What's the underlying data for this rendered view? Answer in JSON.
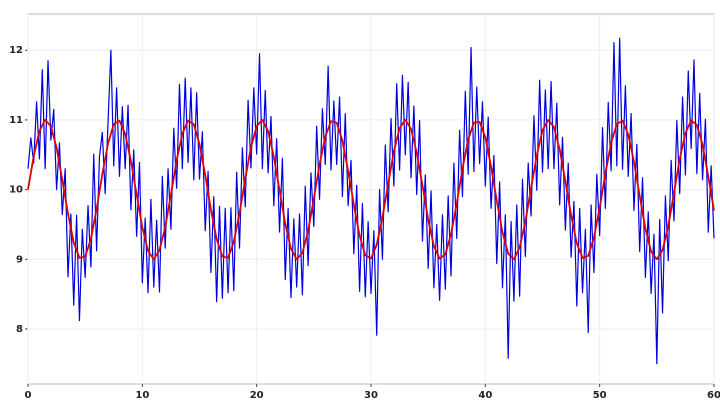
{
  "chart_data": {
    "type": "line",
    "xlim": [
      0,
      60
    ],
    "ylim": [
      7.21,
      12.52
    ],
    "xticks": [
      0,
      10,
      20,
      30,
      40,
      50,
      60
    ],
    "yticks": [
      8,
      9,
      10,
      11,
      12
    ],
    "grid": true,
    "series": [
      {
        "color": "#0000dd",
        "x": [
          0,
          0.25,
          0.5,
          0.75,
          1,
          1.25,
          1.5,
          1.75,
          2,
          2.25,
          2.5,
          2.75,
          3,
          3.25,
          3.5,
          3.75,
          4,
          4.25,
          4.5,
          4.75,
          5,
          5.25,
          5.5,
          5.75,
          6,
          6.25,
          6.5,
          6.75,
          7,
          7.25,
          7.5,
          7.75,
          8,
          8.25,
          8.5,
          8.75,
          9,
          9.25,
          9.5,
          9.75,
          10,
          10.25,
          10.5,
          10.75,
          11,
          11.25,
          11.5,
          11.75,
          12,
          12.25,
          12.5,
          12.75,
          13,
          13.25,
          13.5,
          13.75,
          14,
          14.25,
          14.5,
          14.75,
          15,
          15.25,
          15.5,
          15.75,
          16,
          16.25,
          16.5,
          16.75,
          17,
          17.25,
          17.5,
          17.75,
          18,
          18.25,
          18.5,
          18.75,
          19,
          19.25,
          19.5,
          19.75,
          20,
          20.25,
          20.5,
          20.75,
          21,
          21.25,
          21.5,
          21.75,
          22,
          22.25,
          22.5,
          22.75,
          23,
          23.25,
          23.5,
          23.75,
          24,
          24.25,
          24.5,
          24.75,
          25,
          25.25,
          25.5,
          25.75,
          26,
          26.25,
          26.5,
          26.75,
          27,
          27.25,
          27.5,
          27.75,
          28,
          28.25,
          28.5,
          28.75,
          29,
          29.25,
          29.5,
          29.75,
          30,
          30.25,
          30.5,
          30.75,
          31,
          31.25,
          31.5,
          31.75,
          32,
          32.25,
          32.5,
          32.75,
          33,
          33.25,
          33.5,
          33.75,
          34,
          34.25,
          34.5,
          34.75,
          35,
          35.25,
          35.5,
          35.75,
          36,
          36.25,
          36.5,
          36.75,
          37,
          37.25,
          37.5,
          37.75,
          38,
          38.25,
          38.5,
          38.75,
          39,
          39.25,
          39.5,
          39.75,
          40,
          40.25,
          40.5,
          40.75,
          41,
          41.25,
          41.5,
          41.75,
          42,
          42.25,
          42.5,
          42.75,
          43,
          43.25,
          43.5,
          43.75,
          44,
          44.25,
          44.5,
          44.75,
          45,
          45.25,
          45.5,
          45.75,
          46,
          46.25,
          46.5,
          46.75,
          47,
          47.25,
          47.5,
          47.75,
          48,
          48.25,
          48.5,
          48.75,
          49,
          49.25,
          49.5,
          49.75,
          50,
          50.25,
          50.5,
          50.75,
          51,
          51.25,
          51.5,
          51.75,
          52,
          52.25,
          52.5,
          52.75,
          53,
          53.25,
          53.5,
          53.75,
          54,
          54.25,
          54.5,
          54.75,
          55,
          55.25,
          55.5,
          55.75,
          56,
          56.25,
          56.5,
          56.75,
          57,
          57.25,
          57.5,
          57.75,
          58,
          58.25,
          58.5,
          58.75,
          59,
          59.25,
          59.5,
          59.75,
          60
        ],
        "values": [
          10.3,
          10.74,
          10.38,
          11.26,
          10.44,
          11.72,
          10.3,
          11.85,
          10.71,
          11.15,
          10.0,
          10.67,
          9.64,
          10.3,
          8.75,
          9.65,
          8.34,
          9.63,
          8.12,
          9.43,
          8.74,
          9.77,
          8.89,
          10.51,
          9.12,
          10.47,
          10.82,
          9.94,
          10.96,
          12.0,
          10.34,
          11.46,
          10.19,
          11.19,
          10.3,
          11.21,
          9.71,
          10.57,
          9.33,
          10.39,
          8.66,
          9.59,
          8.52,
          9.86,
          8.6,
          9.56,
          8.53,
          10.19,
          9.16,
          10.3,
          9.43,
          10.88,
          10.02,
          11.51,
          10.3,
          11.6,
          10.39,
          11.46,
          10.14,
          11.39,
          10.15,
          10.83,
          9.41,
          10.26,
          8.81,
          9.9,
          8.39,
          9.76,
          8.44,
          9.73,
          8.52,
          9.74,
          8.55,
          10.25,
          9.16,
          10.6,
          9.75,
          11.28,
          10.31,
          11.46,
          10.51,
          11.95,
          10.3,
          11.42,
          10.24,
          11.05,
          9.77,
          10.73,
          9.39,
          10.45,
          8.71,
          9.73,
          8.45,
          9.58,
          8.6,
          9.65,
          8.49,
          10.05,
          8.91,
          10.24,
          9.47,
          10.91,
          9.86,
          11.16,
          10.36,
          11.77,
          10.28,
          11.27,
          10.36,
          11.33,
          9.9,
          11.09,
          9.77,
          10.42,
          9.08,
          10.06,
          8.54,
          9.8,
          8.46,
          9.54,
          8.51,
          9.41,
          7.91,
          10.0,
          9.0,
          10.64,
          9.68,
          11.02,
          10.05,
          11.52,
          10.28,
          11.64,
          10.5,
          11.54,
          10.17,
          11.2,
          9.93,
          10.99,
          9.26,
          10.21,
          8.87,
          9.98,
          8.59,
          9.5,
          8.41,
          9.64,
          8.57,
          9.91,
          8.76,
          10.38,
          9.3,
          10.85,
          9.9,
          11.41,
          10.22,
          12.04,
          10.26,
          11.47,
          10.37,
          11.26,
          10.05,
          11.04,
          9.73,
          10.49,
          8.94,
          10.11,
          8.59,
          9.64,
          7.58,
          9.54,
          8.4,
          9.78,
          8.47,
          10.15,
          9.04,
          10.38,
          9.62,
          11.06,
          9.99,
          11.57,
          10.25,
          11.43,
          10.3,
          11.55,
          10.3,
          11.24,
          9.78,
          10.75,
          9.42,
          10.38,
          9.03,
          9.83,
          8.33,
          9.73,
          8.52,
          9.43,
          7.95,
          9.78,
          8.81,
          10.22,
          9.34,
          10.89,
          9.73,
          11.25,
          10.27,
          12.11,
          10.34,
          12.17,
          10.29,
          11.49,
          10.19,
          11.09,
          9.7,
          10.65,
          9.11,
          10.17,
          8.74,
          9.68,
          8.51,
          9.36,
          7.5,
          9.57,
          8.23,
          9.91,
          8.98,
          10.42,
          9.55,
          10.99,
          9.94,
          11.33,
          10.21,
          11.7,
          10.59,
          11.86,
          10.23,
          11.38,
          10.14,
          11.01,
          9.39,
          10.34,
          9.3
        ]
      },
      {
        "color": "#dd0000",
        "x": [
          0,
          0.5,
          1,
          1.5,
          2,
          2.5,
          3,
          3.5,
          4,
          4.5,
          5,
          5.5,
          6,
          6.5,
          7,
          7.5,
          8,
          8.5,
          9,
          9.5,
          10,
          10.5,
          11,
          11.5,
          12,
          12.5,
          13,
          13.5,
          14,
          14.5,
          15,
          15.5,
          16,
          16.5,
          17,
          17.5,
          18,
          18.5,
          19,
          19.5,
          20,
          20.5,
          21,
          21.5,
          22,
          22.5,
          23,
          23.5,
          24,
          24.5,
          25,
          25.5,
          26,
          26.5,
          27,
          27.5,
          28,
          28.5,
          29,
          29.5,
          30,
          30.5,
          31,
          31.5,
          32,
          32.5,
          33,
          33.5,
          34,
          34.5,
          35,
          35.5,
          36,
          36.5,
          37,
          37.5,
          38,
          38.5,
          39,
          39.5,
          40,
          40.5,
          41,
          41.5,
          42,
          42.5,
          43,
          43.5,
          44,
          44.5,
          45,
          45.5,
          46,
          46.5,
          47,
          47.5,
          48,
          48.5,
          49,
          49.5,
          50,
          50.5,
          51,
          51.5,
          52,
          52.5,
          53,
          53.5,
          54,
          54.5,
          55,
          55.5,
          56,
          56.5,
          57,
          57.5,
          58,
          58.5,
          59,
          59.5,
          60
        ],
        "values": [
          10.0,
          10.48,
          10.84,
          11.0,
          10.91,
          10.6,
          10.14,
          9.65,
          9.24,
          9.02,
          9.04,
          9.29,
          9.72,
          10.22,
          10.66,
          10.94,
          10.99,
          10.8,
          10.41,
          9.93,
          9.46,
          9.12,
          9.0,
          9.13,
          9.46,
          9.93,
          10.42,
          10.8,
          10.99,
          10.94,
          10.65,
          10.21,
          9.71,
          9.29,
          9.04,
          9.02,
          9.25,
          9.66,
          10.15,
          10.61,
          10.91,
          11.0,
          10.84,
          10.47,
          9.99,
          9.51,
          9.15,
          9.0,
          9.09,
          9.41,
          9.87,
          10.36,
          10.76,
          10.98,
          10.96,
          10.7,
          10.27,
          9.78,
          9.34,
          9.06,
          9.01,
          9.21,
          9.6,
          10.08,
          10.55,
          10.88,
          11.0,
          10.87,
          10.53,
          10.06,
          9.57,
          9.19,
          9.01,
          9.07,
          9.36,
          9.8,
          10.3,
          10.72,
          10.96,
          10.97,
          10.75,
          10.33,
          9.84,
          9.39,
          9.08,
          9.0,
          9.17,
          9.54,
          10.02,
          10.49,
          10.85,
          11.0,
          10.9,
          10.58,
          10.12,
          9.63,
          9.23,
          9.02,
          9.05,
          9.31,
          9.74,
          10.23,
          10.67,
          10.94,
          10.99,
          10.79,
          10.4,
          9.91,
          9.44,
          9.11,
          9.0,
          9.13,
          9.48,
          9.95,
          10.44,
          10.81,
          10.99,
          10.93,
          10.64,
          10.19,
          9.7
        ]
      }
    ]
  }
}
